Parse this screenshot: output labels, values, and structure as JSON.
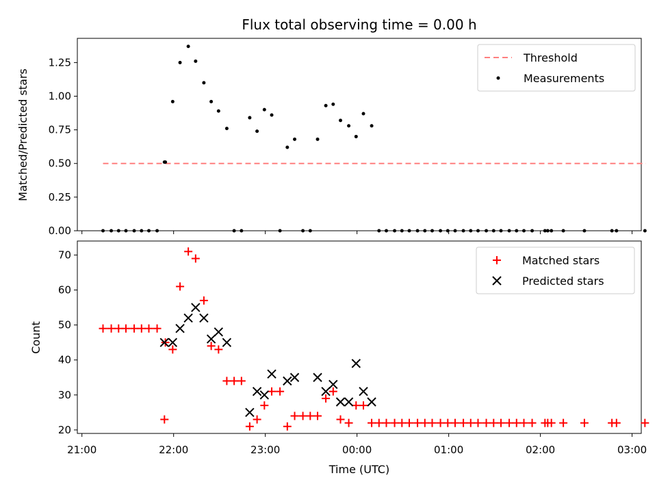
{
  "title": "Flux total observing time = 0.00 h",
  "colors": {
    "threshold": "#ff7f7f",
    "measurement": "#000000",
    "matched": "#ff0000",
    "predicted": "#000000"
  },
  "chart_data": [
    {
      "type": "scatter",
      "ylabel": "Matched/Predicted stars",
      "ylim": [
        0,
        1.43
      ],
      "yticks": [
        "0.00",
        "0.25",
        "0.50",
        "0.75",
        "1.00",
        "1.25"
      ],
      "xlim": [
        -0.05,
        6.1
      ],
      "legend": {
        "position": "top-right",
        "threshold_label": "Threshold",
        "measurements_label": "Measurements"
      },
      "threshold": {
        "name": "Threshold",
        "y": 0.5,
        "x_start": 0.23,
        "x_end": 6.15
      },
      "measurements": {
        "name": "Measurements",
        "x": [
          0.23,
          0.32,
          0.4,
          0.48,
          0.57,
          0.65,
          0.73,
          0.82,
          0.9,
          0.91,
          0.99,
          1.07,
          1.16,
          1.24,
          1.33,
          1.41,
          1.49,
          1.58,
          1.66,
          1.74,
          1.83,
          1.91,
          1.99,
          2.07,
          2.16,
          2.24,
          2.32,
          2.41,
          2.49,
          2.57,
          2.66,
          2.74,
          2.82,
          2.91,
          2.99,
          3.07,
          3.16,
          3.24,
          3.32,
          3.41,
          3.49,
          3.57,
          3.66,
          3.74,
          3.82,
          3.91,
          3.99,
          4.07,
          4.16,
          4.24,
          4.32,
          4.41,
          4.49,
          4.57,
          4.66,
          4.74,
          4.82,
          4.91,
          5.05,
          5.08,
          5.12,
          5.25,
          5.48,
          5.78,
          5.83,
          6.14
        ],
        "y": [
          0,
          0,
          0,
          0,
          0,
          0,
          0,
          0,
          0.51,
          0.51,
          0.96,
          1.25,
          1.37,
          1.26,
          1.1,
          0.96,
          0.89,
          0.76,
          0,
          0,
          0.84,
          0.74,
          0.9,
          0.86,
          0,
          0.62,
          0.68,
          0,
          0,
          0.68,
          0.93,
          0.94,
          0.82,
          0.78,
          0.7,
          0.87,
          0.78,
          0,
          0,
          0,
          0,
          0,
          0,
          0,
          0,
          0,
          0,
          0,
          0,
          0,
          0,
          0,
          0,
          0,
          0,
          0,
          0,
          0,
          0,
          0,
          0,
          0,
          0,
          0,
          0,
          0
        ]
      }
    },
    {
      "type": "scatter",
      "ylabel": "Count",
      "xlabel": "Time (UTC)",
      "ylim": [
        19,
        74
      ],
      "yticks": [
        "20",
        "30",
        "40",
        "50",
        "60",
        "70"
      ],
      "xlim": [
        -0.05,
        6.1
      ],
      "xticks": {
        "values": [
          0,
          1,
          2,
          3,
          4,
          5,
          6
        ],
        "labels": [
          "21:00",
          "22:00",
          "23:00",
          "00:00",
          "01:00",
          "02:00",
          "03:00"
        ]
      },
      "legend": {
        "position": "top-right",
        "matched_label": "Matched stars",
        "predicted_label": "Predicted stars"
      },
      "matched": {
        "name": "Matched stars",
        "x": [
          0.23,
          0.32,
          0.4,
          0.48,
          0.57,
          0.65,
          0.73,
          0.82,
          0.9,
          0.91,
          0.99,
          1.07,
          1.16,
          1.24,
          1.33,
          1.41,
          1.49,
          1.58,
          1.66,
          1.74,
          1.83,
          1.91,
          1.99,
          2.07,
          2.16,
          2.24,
          2.32,
          2.41,
          2.49,
          2.57,
          2.66,
          2.74,
          2.82,
          2.91,
          2.99,
          3.07,
          3.16,
          3.24,
          3.32,
          3.41,
          3.49,
          3.57,
          3.66,
          3.74,
          3.82,
          3.91,
          3.99,
          4.07,
          4.16,
          4.24,
          4.32,
          4.41,
          4.49,
          4.57,
          4.66,
          4.74,
          4.82,
          4.91,
          5.05,
          5.08,
          5.12,
          5.25,
          5.48,
          5.78,
          5.83,
          6.14
        ],
        "y": [
          49,
          49,
          49,
          49,
          49,
          49,
          49,
          49,
          23,
          45,
          43,
          61,
          71,
          69,
          57,
          44,
          43,
          34,
          34,
          34,
          21,
          23,
          27,
          31,
          31,
          21,
          24,
          24,
          24,
          24,
          29,
          31,
          23,
          22,
          27,
          27,
          22,
          22,
          22,
          22,
          22,
          22,
          22,
          22,
          22,
          22,
          22,
          22,
          22,
          22,
          22,
          22,
          22,
          22,
          22,
          22,
          22,
          22,
          22,
          22,
          22,
          22,
          22,
          22,
          22,
          22
        ]
      },
      "predicted": {
        "name": "Predicted stars",
        "x": [
          0.9,
          0.99,
          1.07,
          1.16,
          1.24,
          1.33,
          1.41,
          1.49,
          1.58,
          1.83,
          1.91,
          1.99,
          2.07,
          2.24,
          2.32,
          2.57,
          2.66,
          2.74,
          2.82,
          2.91,
          2.99,
          3.07,
          3.16
        ],
        "y": [
          45,
          45,
          49,
          52,
          55,
          52,
          46,
          48,
          45,
          25,
          31,
          30,
          36,
          34,
          35,
          35,
          31,
          33,
          28,
          28,
          39,
          31,
          28
        ]
      }
    }
  ]
}
